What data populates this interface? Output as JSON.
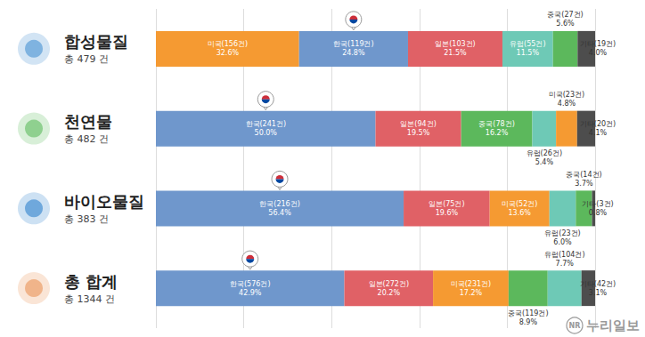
{
  "chart_data": {
    "type": "bar",
    "orientation": "horizontal",
    "stacked": true,
    "data_labels": true,
    "tick_labels": "y",
    "grid": true,
    "categories": [
      "합성물질",
      "천연물",
      "바이오물질",
      "총 합계"
    ],
    "subtitles": [
      "총 479 건",
      "총 482 건",
      "총 383 건",
      "총 1344 건"
    ],
    "xlim": [
      0,
      100
    ],
    "xticks": [
      0,
      20,
      40,
      60,
      80,
      100
    ],
    "rows": [
      [
        {
          "label": "미국(156건)",
          "value": 32.6,
          "value_label": "32.6%",
          "color": "#f59a32"
        },
        {
          "label": "한국(119건)",
          "value": 24.8,
          "value_label": "24.8%",
          "color": "#6f97cc",
          "marker": "pin"
        },
        {
          "label": "일본(103건)",
          "value": 21.5,
          "value_label": "21.5%",
          "color": "#e06166"
        },
        {
          "label": "유럽(55건)",
          "value": 11.5,
          "value_label": "11.5%",
          "color": "#6ec9b6"
        },
        {
          "label": "중국(27건)",
          "value": 5.6,
          "value_label": "5.6%",
          "color": "#5cb85c"
        },
        {
          "label": "기타(19건)",
          "value": 4.0,
          "value_label": "4.0%",
          "color": "#4d4d4d"
        }
      ],
      [
        {
          "label": "한국(241건)",
          "value": 50.0,
          "value_label": "50.0%",
          "color": "#6f97cc",
          "marker": "pin"
        },
        {
          "label": "일본(94건)",
          "value": 19.5,
          "value_label": "19.5%",
          "color": "#e06166"
        },
        {
          "label": "중국(78건)",
          "value": 16.2,
          "value_label": "16.2%",
          "color": "#5cb85c"
        },
        {
          "label": "유럽(26건)",
          "value": 5.4,
          "value_label": "5.4%",
          "color": "#6ec9b6"
        },
        {
          "label": "미국(23건)",
          "value": 4.8,
          "value_label": "4.8%",
          "color": "#f59a32"
        },
        {
          "label": "기타(20건)",
          "value": 4.1,
          "value_label": "4.1%",
          "color": "#4d4d4d"
        }
      ],
      [
        {
          "label": "한국(216건)",
          "value": 56.4,
          "value_label": "56.4%",
          "color": "#6f97cc",
          "marker": "pin"
        },
        {
          "label": "일본(75건)",
          "value": 19.6,
          "value_label": "19.6%",
          "color": "#e06166"
        },
        {
          "label": "미국(52건)",
          "value": 13.6,
          "value_label": "13.6%",
          "color": "#f59a32"
        },
        {
          "label": "유럽(23건)",
          "value": 6.0,
          "value_label": "6.0%",
          "color": "#6ec9b6"
        },
        {
          "label": "중국(14건)",
          "value": 3.7,
          "value_label": "3.7%",
          "color": "#5cb85c"
        },
        {
          "label": "기타(3건)",
          "value": 0.8,
          "value_label": "0.8%",
          "color": "#4d4d4d"
        }
      ],
      [
        {
          "label": "한국(576건)",
          "value": 42.9,
          "value_label": "42.9%",
          "color": "#6f97cc",
          "marker": "pin"
        },
        {
          "label": "일본(272건)",
          "value": 20.2,
          "value_label": "20.2%",
          "color": "#e06166"
        },
        {
          "label": "미국(231건)",
          "value": 17.2,
          "value_label": "17.2%",
          "color": "#f59a32"
        },
        {
          "label": "중국(119건)",
          "value": 8.9,
          "value_label": "8.9%",
          "color": "#5cb85c"
        },
        {
          "label": "유럽(104건)",
          "value": 7.7,
          "value_label": "7.7%",
          "color": "#6ec9b6"
        },
        {
          "label": "기타(42건)",
          "value": 3.1,
          "value_label": "3.1%",
          "color": "#4d4d4d"
        }
      ]
    ],
    "annotation": {
      "logo": "NR",
      "text": "누리일보"
    }
  }
}
